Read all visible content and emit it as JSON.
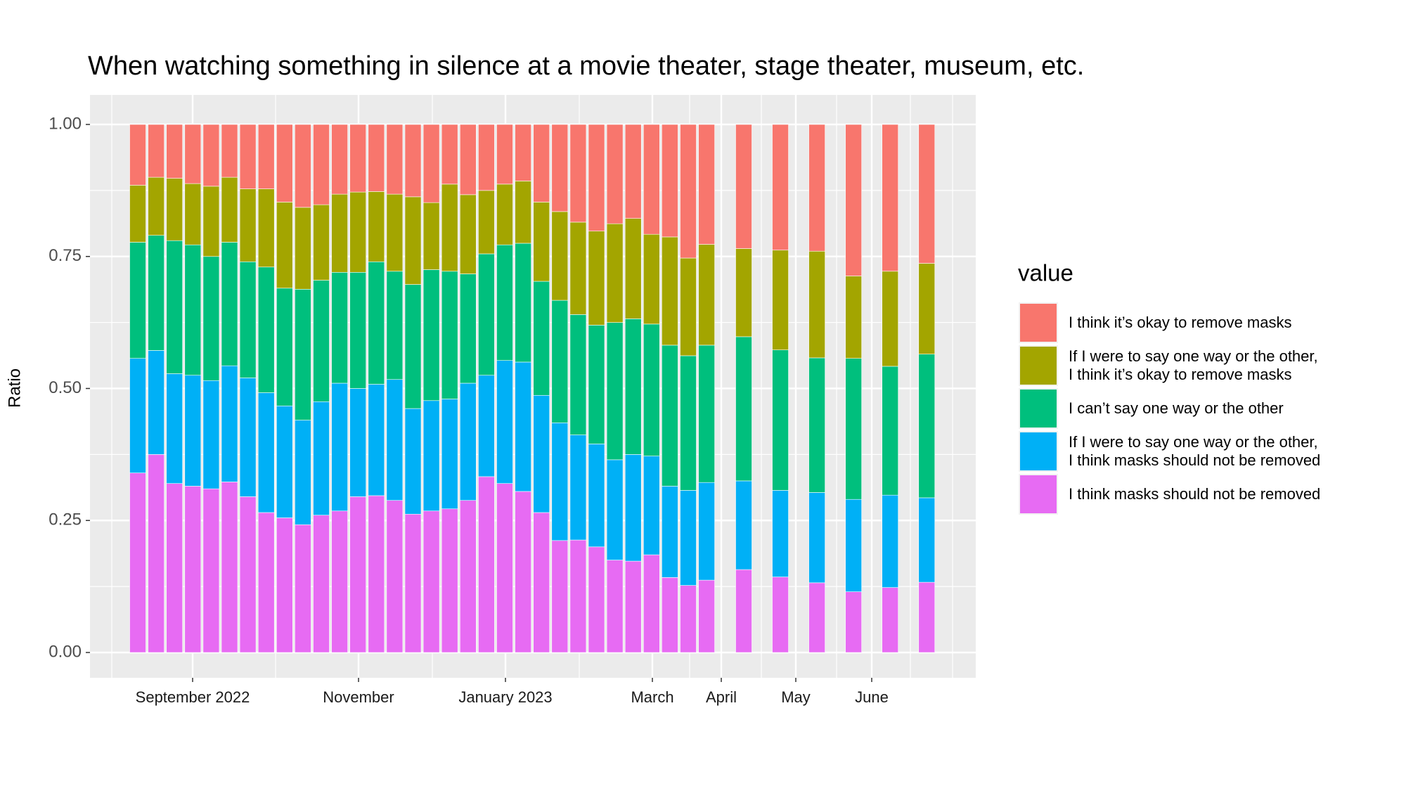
{
  "chart_data": {
    "type": "stacked_bar",
    "title": "When watching something in silence at a movie theater, stage theater, museum, etc.",
    "y_label": "Ratio",
    "legend_title": "value",
    "legend_position": "right",
    "grid": true,
    "ylim": [
      0,
      1
    ],
    "yticks": [
      {
        "value": 0,
        "label": "0.00"
      },
      {
        "value": 0.25,
        "label": "0.25"
      },
      {
        "value": 0.5,
        "label": "0.50"
      },
      {
        "value": 0.75,
        "label": "0.75"
      },
      {
        "value": 1,
        "label": "1.00"
      }
    ],
    "xtick_labels": [
      "September 2022",
      "November",
      "January 2023",
      "March",
      "April",
      "May",
      "June"
    ],
    "series": [
      {
        "name": "I think it’s okay to remove masks",
        "color": "#F8766D",
        "values": [
          0.115,
          0.1,
          0.102,
          0.112,
          0.117,
          0.1,
          0.122,
          0.122,
          0.147,
          0.157,
          0.152,
          0.132,
          0.128,
          0.127,
          0.132,
          0.137,
          0.148,
          0.113,
          0.133,
          0.125,
          0.113,
          0.107,
          0.147,
          0.165,
          0.185,
          0.202,
          0.188,
          0.178,
          0.208,
          0.213,
          0.253,
          0.227,
          0.235,
          0.238,
          0.24,
          0.287,
          0.278,
          0.263
        ]
      },
      {
        "name": "If I were to say one way or the other,\nI think it’s okay to remove  masks",
        "color": "#A3A500",
        "values": [
          0.108,
          0.11,
          0.118,
          0.116,
          0.133,
          0.123,
          0.138,
          0.148,
          0.163,
          0.155,
          0.143,
          0.148,
          0.152,
          0.133,
          0.146,
          0.166,
          0.127,
          0.165,
          0.15,
          0.12,
          0.115,
          0.118,
          0.15,
          0.168,
          0.175,
          0.178,
          0.187,
          0.19,
          0.17,
          0.205,
          0.185,
          0.191,
          0.167,
          0.189,
          0.202,
          0.156,
          0.18,
          0.172
        ]
      },
      {
        "name": "I can’t say one way or the other",
        "color": "#00BF7D",
        "values": [
          0.22,
          0.218,
          0.252,
          0.247,
          0.235,
          0.234,
          0.22,
          0.238,
          0.223,
          0.248,
          0.23,
          0.21,
          0.22,
          0.232,
          0.205,
          0.235,
          0.248,
          0.242,
          0.207,
          0.23,
          0.219,
          0.225,
          0.216,
          0.232,
          0.228,
          0.225,
          0.26,
          0.257,
          0.25,
          0.267,
          0.255,
          0.26,
          0.273,
          0.266,
          0.255,
          0.267,
          0.244,
          0.272
        ]
      },
      {
        "name": "If I were to say one way or the other,\nI think masks should not be removed",
        "color": "#00B0F6",
        "values": [
          0.217,
          0.197,
          0.208,
          0.21,
          0.205,
          0.22,
          0.225,
          0.227,
          0.212,
          0.198,
          0.215,
          0.242,
          0.205,
          0.211,
          0.229,
          0.2,
          0.209,
          0.208,
          0.222,
          0.192,
          0.233,
          0.245,
          0.222,
          0.223,
          0.199,
          0.195,
          0.19,
          0.202,
          0.187,
          0.173,
          0.18,
          0.185,
          0.168,
          0.164,
          0.171,
          0.175,
          0.175,
          0.16
        ]
      },
      {
        "name": "I think masks should not be removed",
        "color": "#E76BF3",
        "values": [
          0.34,
          0.375,
          0.32,
          0.315,
          0.31,
          0.323,
          0.295,
          0.265,
          0.255,
          0.242,
          0.26,
          0.268,
          0.295,
          0.297,
          0.288,
          0.262,
          0.268,
          0.272,
          0.288,
          0.333,
          0.32,
          0.305,
          0.265,
          0.212,
          0.213,
          0.2,
          0.175,
          0.173,
          0.185,
          0.142,
          0.127,
          0.137,
          0.157,
          0.143,
          0.132,
          0.115,
          0.123,
          0.133
        ]
      }
    ]
  }
}
